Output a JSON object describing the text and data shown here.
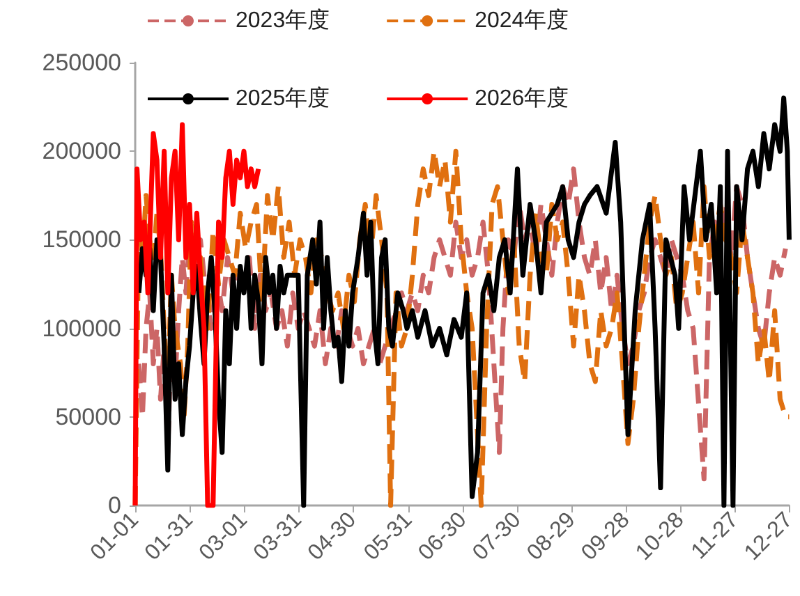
{
  "chart_data": {
    "type": "line",
    "xlim": [
      "--01-01",
      "--12-27"
    ],
    "xticks": [
      {
        "value": "--01-01",
        "label": "01-01"
      },
      {
        "value": "--01-31",
        "label": "01-31"
      },
      {
        "value": "--03-01",
        "label": "03-01"
      },
      {
        "value": "--03-31",
        "label": "03-31"
      },
      {
        "value": "--04-30",
        "label": "04-30"
      },
      {
        "value": "--05-31",
        "label": "05-31"
      },
      {
        "value": "--06-30",
        "label": "06-30"
      },
      {
        "value": "--07-30",
        "label": "07-30"
      },
      {
        "value": "--08-29",
        "label": "08-29"
      },
      {
        "value": "--09-28",
        "label": "09-28"
      },
      {
        "value": "--10-28",
        "label": "10-28"
      },
      {
        "value": "--11-27",
        "label": "11-27"
      },
      {
        "value": "--12-27",
        "label": "12-27"
      }
    ],
    "ylim": [
      0,
      250000
    ],
    "yticks": [
      0,
      50000,
      100000,
      150000,
      200000,
      250000
    ],
    "grid": false,
    "legend": "top",
    "marker": "none",
    "series": [
      {
        "name": "2023年度",
        "color": "#cc6666",
        "line_style": "dashed",
        "x": [
          "--01-03",
          "--01-05",
          "--01-07",
          "--01-09",
          "--01-11",
          "--01-13",
          "--01-15",
          "--01-17",
          "--01-19",
          "--01-21",
          "--01-23",
          "--01-25",
          "--01-27",
          "--01-29",
          "--01-31",
          "--02-03",
          "--02-06",
          "--02-09",
          "--02-12",
          "--02-15",
          "--02-18",
          "--02-21",
          "--02-24",
          "--02-27",
          "--03-01",
          "--03-04",
          "--03-07",
          "--03-10",
          "--03-13",
          "--03-16",
          "--03-19",
          "--03-22",
          "--03-25",
          "--03-28",
          "--03-31",
          "--04-03",
          "--04-06",
          "--04-09",
          "--04-12",
          "--04-15",
          "--04-18",
          "--04-21",
          "--04-24",
          "--04-27",
          "--04-30",
          "--05-03",
          "--05-06",
          "--05-09",
          "--05-12",
          "--05-15",
          "--05-18",
          "--05-21",
          "--05-24",
          "--05-27",
          "--05-30",
          "--06-02",
          "--06-05",
          "--06-08",
          "--06-11",
          "--06-14",
          "--06-17",
          "--06-20",
          "--06-23",
          "--06-26",
          "--06-29",
          "--07-02",
          "--07-05",
          "--07-08",
          "--07-11",
          "--07-14",
          "--07-17",
          "--07-20",
          "--07-22",
          "--07-25",
          "--07-28",
          "--07-31",
          "--08-03",
          "--08-06",
          "--08-09",
          "--08-12",
          "--08-15",
          "--08-18",
          "--08-21",
          "--08-24",
          "--08-27",
          "--08-30",
          "--09-02",
          "--09-05",
          "--09-08",
          "--09-11",
          "--09-14",
          "--09-17",
          "--09-20",
          "--09-23",
          "--09-26",
          "--09-29",
          "--10-02",
          "--10-05",
          "--10-08",
          "--10-11",
          "--10-14",
          "--10-17",
          "--10-20",
          "--10-23",
          "--10-26",
          "--10-29",
          "--11-01",
          "--11-04",
          "--11-10",
          "--11-13",
          "--11-16",
          "--11-19",
          "--11-22",
          "--11-25",
          "--11-28",
          "--12-01",
          "--12-04",
          "--12-07",
          "--12-10",
          "--12-13",
          "--12-16",
          "--12-19",
          "--12-22",
          "--12-25"
        ],
        "values": [
          80000,
          50000,
          100000,
          120000,
          80000,
          100000,
          60000,
          90000,
          30000,
          100000,
          70000,
          110000,
          140000,
          120000,
          150000,
          130000,
          150000,
          120000,
          100000,
          130000,
          110000,
          140000,
          120000,
          130000,
          120000,
          140000,
          100000,
          130000,
          110000,
          120000,
          100000,
          110000,
          90000,
          120000,
          100000,
          110000,
          100000,
          90000,
          110000,
          80000,
          100000,
          90000,
          110000,
          100000,
          90000,
          100000,
          80000,
          90000,
          100000,
          80000,
          90000,
          100000,
          110000,
          120000,
          110000,
          120000,
          110000,
          130000,
          120000,
          140000,
          150000,
          140000,
          130000,
          160000,
          140000,
          150000,
          130000,
          140000,
          160000,
          130000,
          80000,
          30000,
          100000,
          150000,
          140000,
          170000,
          150000,
          160000,
          140000,
          170000,
          150000,
          130000,
          160000,
          180000,
          170000,
          190000,
          160000,
          140000,
          130000,
          150000,
          120000,
          140000,
          110000,
          130000,
          100000,
          80000,
          90000,
          110000,
          120000,
          140000,
          150000,
          140000,
          130000,
          150000,
          140000,
          130000,
          110000,
          100000,
          15000,
          140000,
          160000,
          150000,
          170000,
          140000,
          180000,
          170000,
          140000,
          120000,
          100000,
          90000,
          120000,
          140000,
          130000,
          145000
        ]
      },
      {
        "name": "2024年度",
        "color": "#e07010",
        "line_style": "dashed",
        "x": [
          "--01-01",
          "--01-03",
          "--01-05",
          "--01-07",
          "--01-09",
          "--01-11",
          "--01-13",
          "--01-15",
          "--01-17",
          "--01-19",
          "--01-21",
          "--01-23",
          "--01-26",
          "--01-28",
          "--01-30",
          "--02-01",
          "--02-03",
          "--02-06",
          "--02-08",
          "--02-10",
          "--02-13",
          "--02-16",
          "--02-19",
          "--02-22",
          "--02-25",
          "--02-28",
          "--03-02",
          "--03-05",
          "--03-08",
          "--03-11",
          "--03-14",
          "--03-17",
          "--03-20",
          "--03-23",
          "--03-26",
          "--03-29",
          "--04-01",
          "--04-04",
          "--04-07",
          "--04-10",
          "--04-13",
          "--04-16",
          "--04-19",
          "--04-22",
          "--04-25",
          "--04-28",
          "--05-01",
          "--05-04",
          "--05-07",
          "--05-10",
          "--05-13",
          "--05-16",
          "--05-19",
          "--05-21",
          "--05-24",
          "--05-27",
          "--05-30",
          "--06-02",
          "--06-05",
          "--06-08",
          "--06-11",
          "--06-14",
          "--06-17",
          "--06-20",
          "--06-23",
          "--06-26",
          "--06-29",
          "--07-02",
          "--07-05",
          "--07-10",
          "--07-13",
          "--07-16",
          "--07-19",
          "--07-22",
          "--07-25",
          "--07-28",
          "--07-31",
          "--08-03",
          "--08-06",
          "--08-09",
          "--08-12",
          "--08-15",
          "--08-18",
          "--08-21",
          "--08-24",
          "--08-27",
          "--08-30",
          "--09-02",
          "--09-05",
          "--09-08",
          "--09-11",
          "--09-14",
          "--09-17",
          "--09-20",
          "--09-23",
          "--09-26",
          "--09-29",
          "--10-02",
          "--10-05",
          "--10-08",
          "--10-11",
          "--10-14",
          "--10-17",
          "--10-20",
          "--10-23",
          "--10-26",
          "--10-29",
          "--11-01",
          "--11-04",
          "--11-07",
          "--11-10",
          "--11-13",
          "--11-16",
          "--11-19",
          "--11-22",
          "--11-25",
          "--11-28",
          "--12-01",
          "--12-04",
          "--12-07",
          "--12-10",
          "--12-13",
          "--12-16",
          "--12-19",
          "--12-22",
          "--12-25",
          "--12-27"
        ],
        "values": [
          0,
          160000,
          140000,
          175000,
          150000,
          140000,
          165000,
          145000,
          100000,
          70000,
          130000,
          100000,
          80000,
          50000,
          90000,
          160000,
          140000,
          140000,
          120000,
          100000,
          155000,
          125000,
          150000,
          140000,
          130000,
          165000,
          145000,
          160000,
          170000,
          115000,
          175000,
          150000,
          180000,
          140000,
          160000,
          130000,
          150000,
          140000,
          120000,
          150000,
          140000,
          120000,
          110000,
          120000,
          100000,
          130000,
          115000,
          150000,
          170000,
          140000,
          175000,
          150000,
          120000,
          0,
          120000,
          90000,
          100000,
          130000,
          170000,
          190000,
          175000,
          200000,
          180000,
          195000,
          160000,
          200000,
          150000,
          120000,
          100000,
          0,
          100000,
          170000,
          180000,
          150000,
          120000,
          150000,
          90000,
          70000,
          130000,
          165000,
          140000,
          130000,
          170000,
          150000,
          160000,
          130000,
          90000,
          130000,
          110000,
          80000,
          70000,
          110000,
          90000,
          100000,
          120000,
          80000,
          35000,
          60000,
          100000,
          130000,
          160000,
          175000,
          150000,
          130000,
          140000,
          110000,
          120000,
          140000,
          160000,
          120000,
          180000,
          140000,
          150000,
          170000,
          150000,
          140000,
          120000,
          160000,
          140000,
          120000,
          80000,
          100000,
          70000,
          110000,
          60000,
          50000,
          50000
        ]
      },
      {
        "name": "2025年度",
        "color": "#000000",
        "line_style": "solid",
        "x": [
          "--01-03",
          "--01-05",
          "--01-07",
          "--01-09",
          "--01-11",
          "--01-13",
          "--01-15",
          "--01-17",
          "--01-19",
          "--01-21",
          "--01-23",
          "--01-25",
          "--01-27",
          "--01-29",
          "--01-31",
          "--02-02",
          "--02-04",
          "--02-06",
          "--02-08",
          "--02-10",
          "--02-12",
          "--02-14",
          "--02-16",
          "--02-18",
          "--02-20",
          "--02-22",
          "--02-24",
          "--02-26",
          "--02-28",
          "--03-01",
          "--03-03",
          "--03-05",
          "--03-07",
          "--03-09",
          "--03-11",
          "--03-13",
          "--03-15",
          "--03-17",
          "--03-19",
          "--03-21",
          "--03-23",
          "--03-25",
          "--03-31",
          "--04-03",
          "--04-05",
          "--04-08",
          "--04-10",
          "--04-12",
          "--04-14",
          "--04-16",
          "--04-18",
          "--04-20",
          "--04-22",
          "--04-24",
          "--04-26",
          "--04-28",
          "--04-30",
          "--05-03",
          "--05-06",
          "--05-08",
          "--05-10",
          "--05-12",
          "--05-14",
          "--05-16",
          "--05-18",
          "--05-20",
          "--05-22",
          "--05-25",
          "--05-28",
          "--05-30",
          "--06-02",
          "--06-05",
          "--06-09",
          "--06-13",
          "--06-17",
          "--06-21",
          "--06-25",
          "--06-29",
          "--07-02",
          "--07-05",
          "--07-08",
          "--07-11",
          "--07-14",
          "--07-17",
          "--07-20",
          "--07-23",
          "--07-26",
          "--07-30",
          "--08-02",
          "--08-06",
          "--08-09",
          "--08-12",
          "--08-15",
          "--08-18",
          "--08-21",
          "--08-24",
          "--08-27",
          "--08-30",
          "--09-02",
          "--09-05",
          "--09-08",
          "--09-12",
          "--09-17",
          "--09-22",
          "--09-25",
          "--09-29",
          "--10-03",
          "--10-07",
          "--10-11",
          "--10-14",
          "--10-17",
          "--10-20",
          "--10-25",
          "--10-27",
          "--10-30",
          "--11-02",
          "--11-05",
          "--11-08",
          "--11-11",
          "--11-14",
          "--11-17",
          "--11-19",
          "--11-21",
          "--11-23",
          "--11-26",
          "--11-28",
          "--12-01",
          "--12-04",
          "--12-07",
          "--12-10",
          "--12-13",
          "--12-16",
          "--12-19",
          "--12-22",
          "--12-24",
          "--12-26",
          "--12-27"
        ],
        "values": [
          120000,
          145000,
          130000,
          145000,
          110000,
          150000,
          140000,
          90000,
          20000,
          130000,
          60000,
          80000,
          40000,
          70000,
          90000,
          120000,
          135000,
          105000,
          80000,
          120000,
          140000,
          110000,
          60000,
          30000,
          110000,
          80000,
          130000,
          100000,
          135000,
          120000,
          140000,
          100000,
          130000,
          115000,
          80000,
          140000,
          120000,
          130000,
          100000,
          135000,
          120000,
          130000,
          130000,
          0,
          130000,
          150000,
          125000,
          160000,
          100000,
          140000,
          110000,
          90000,
          95000,
          70000,
          110000,
          90000,
          120000,
          140000,
          165000,
          130000,
          160000,
          100000,
          80000,
          140000,
          150000,
          100000,
          90000,
          120000,
          110000,
          100000,
          110000,
          95000,
          110000,
          90000,
          100000,
          85000,
          105000,
          95000,
          120000,
          5000,
          30000,
          120000,
          130000,
          110000,
          140000,
          150000,
          120000,
          190000,
          130000,
          170000,
          150000,
          120000,
          160000,
          165000,
          170000,
          180000,
          150000,
          140000,
          160000,
          170000,
          175000,
          180000,
          165000,
          205000,
          160000,
          40000,
          110000,
          150000,
          170000,
          100000,
          10000,
          150000,
          130000,
          100000,
          180000,
          150000,
          175000,
          200000,
          150000,
          170000,
          120000,
          180000,
          0,
          200000,
          0,
          180000,
          150000,
          190000,
          200000,
          180000,
          210000,
          190000,
          215000,
          200000,
          230000,
          200000,
          150000
        ]
      },
      {
        "name": "2026年度",
        "color": "#ff0000",
        "line_style": "solid",
        "x": [
          "--01-01",
          "--01-02",
          "--01-04",
          "--01-06",
          "--01-08",
          "--01-11",
          "--01-13",
          "--01-15",
          "--01-17",
          "--01-19",
          "--01-21",
          "--01-23",
          "--01-25",
          "--01-27",
          "--01-29",
          "--01-31",
          "--02-02",
          "--02-04",
          "--02-06",
          "--02-08",
          "--02-10",
          "--02-13",
          "--02-16",
          "--02-18",
          "--02-20",
          "--02-22",
          "--02-24",
          "--02-26",
          "--02-28",
          "--03-01",
          "--03-03",
          "--03-05",
          "--03-07",
          "--03-09"
        ],
        "values": [
          0,
          190000,
          150000,
          160000,
          120000,
          210000,
          195000,
          140000,
          200000,
          120000,
          185000,
          200000,
          150000,
          215000,
          140000,
          170000,
          120000,
          165000,
          130000,
          100000,
          0,
          0,
          160000,
          140000,
          185000,
          200000,
          170000,
          195000,
          185000,
          200000,
          180000,
          190000,
          180000,
          190000
        ]
      }
    ]
  }
}
